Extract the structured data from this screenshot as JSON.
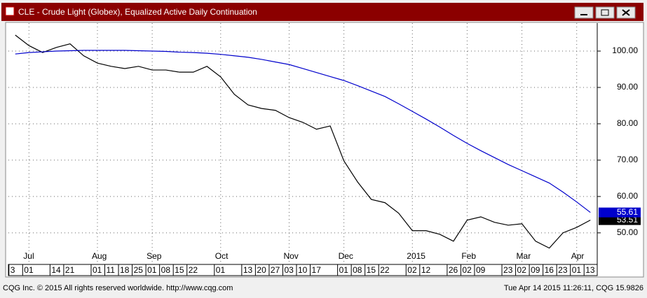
{
  "chart_data": {
    "type": "line",
    "title": "CLE - Crude Light (Globex), Equalized Active Daily Continuation",
    "footer_left": "CQG Inc. © 2015 All rights reserved worldwide. http://www.cqg.com",
    "footer_right": "Tue Apr 14 2015 11:26:11, CQG 15.9826",
    "categories": [
      "3",
      "01",
      null,
      "14",
      "21",
      null,
      "01",
      "11",
      "18",
      "25",
      "01",
      "08",
      "15",
      "22",
      null,
      "01",
      null,
      "13",
      "20",
      "27",
      "03",
      "10",
      "17",
      null,
      "01",
      "08",
      "15",
      "22",
      null,
      "02",
      "12",
      null,
      "26",
      "02",
      "09",
      null,
      "23",
      "02",
      "09",
      "16",
      "23",
      "01",
      "13"
    ],
    "month_labels": [
      null,
      "Jul",
      null,
      null,
      null,
      null,
      "Aug",
      null,
      null,
      null,
      "Sep",
      null,
      null,
      null,
      null,
      "Oct",
      null,
      null,
      null,
      null,
      "Nov",
      null,
      null,
      null,
      "Dec",
      null,
      null,
      null,
      null,
      "2015",
      null,
      null,
      null,
      "Feb",
      null,
      null,
      null,
      "Mar",
      null,
      null,
      null,
      "Apr",
      null
    ],
    "series": [
      {
        "color": "#000000",
        "values": [
          104.4,
          101.5,
          99.6,
          101,
          102,
          98.7,
          96.7,
          95.8,
          95.2,
          95.8,
          94.8,
          94.8,
          94.2,
          94.2,
          95.8,
          92.9,
          88.1,
          85.2,
          84.2,
          83.7,
          81.7,
          80.4,
          78.5,
          79.4,
          69.8,
          64,
          59.2,
          58.3,
          55.4,
          50.6,
          50.6,
          49.6,
          47.7,
          53.5,
          54.4,
          52.9,
          52.1,
          52.5,
          47.7,
          45.8,
          50,
          51.5,
          53.51
        ]
      },
      {
        "color": "#0000cc",
        "values": [
          99.2,
          99.6,
          99.8,
          100,
          100.1,
          100.2,
          100.2,
          100.2,
          100.2,
          100.1,
          100,
          99.9,
          99.7,
          99.6,
          99.4,
          99.1,
          98.7,
          98.3,
          97.7,
          97.0,
          96.3,
          95.2,
          94.1,
          93.0,
          91.9,
          90.5,
          89.0,
          87.5,
          85.5,
          83.4,
          81.3,
          79.1,
          76.8,
          74.6,
          72.6,
          70.7,
          68.8,
          67.1,
          65.4,
          63.7,
          61.2,
          58.5,
          55.61
        ]
      }
    ],
    "ylim": [
      41.7,
      107.7
    ],
    "yticks": [
      {
        "value": 50,
        "label": "50.00"
      },
      {
        "value": 60,
        "label": "60.00"
      },
      {
        "value": 70,
        "label": "70.00"
      },
      {
        "value": 80,
        "label": "80.00"
      },
      {
        "value": 90,
        "label": "90.00"
      },
      {
        "value": 100,
        "label": "100.00"
      }
    ],
    "grid": true
  }
}
